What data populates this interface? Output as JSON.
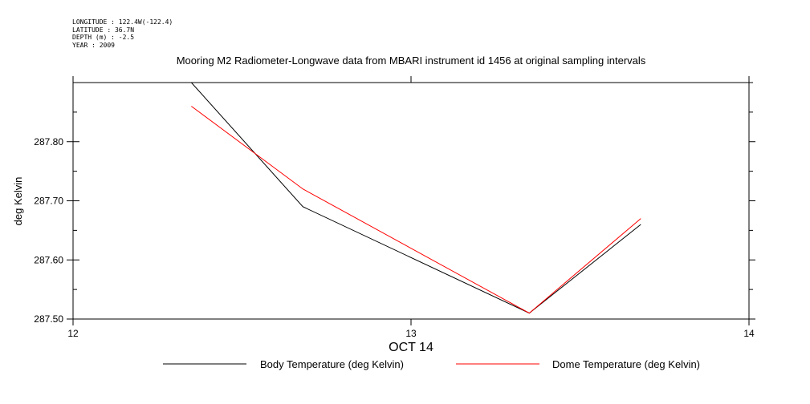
{
  "header_meta": {
    "longitude": "LONGITUDE : 122.4W(-122.4)",
    "latitude": "LATITUDE : 36.7N",
    "depth": "DEPTH (m) : -2.5",
    "year": "YEAR : 2009"
  },
  "chart_data": {
    "type": "line",
    "title": "Mooring M2 Radiometer-Longwave data from MBARI instrument id 1456 at original sampling intervals",
    "xlabel": "OCT 14",
    "ylabel": "deg Kelvin",
    "xlim": [
      12,
      14
    ],
    "ylim": [
      287.5,
      287.9
    ],
    "xticks": [
      12,
      13,
      14
    ],
    "xtick_labels": [
      "12",
      "13",
      "14"
    ],
    "yticks": [
      287.5,
      287.6,
      287.7,
      287.8
    ],
    "ytick_labels": [
      "287.50",
      "287.60",
      "287.70",
      "287.80"
    ],
    "grid": false,
    "legend_position": "bottom",
    "series": [
      {
        "name": "Body Temperature (deg Kelvin)",
        "color": "#000000",
        "x": [
          12.35,
          12.68,
          13.35,
          13.68
        ],
        "y": [
          287.9,
          287.69,
          287.51,
          287.66
        ]
      },
      {
        "name": "Dome Temperature (deg Kelvin)",
        "color": "#ff0000",
        "x": [
          12.35,
          12.68,
          13.35,
          13.68
        ],
        "y": [
          287.86,
          287.72,
          287.51,
          287.67
        ]
      }
    ]
  }
}
